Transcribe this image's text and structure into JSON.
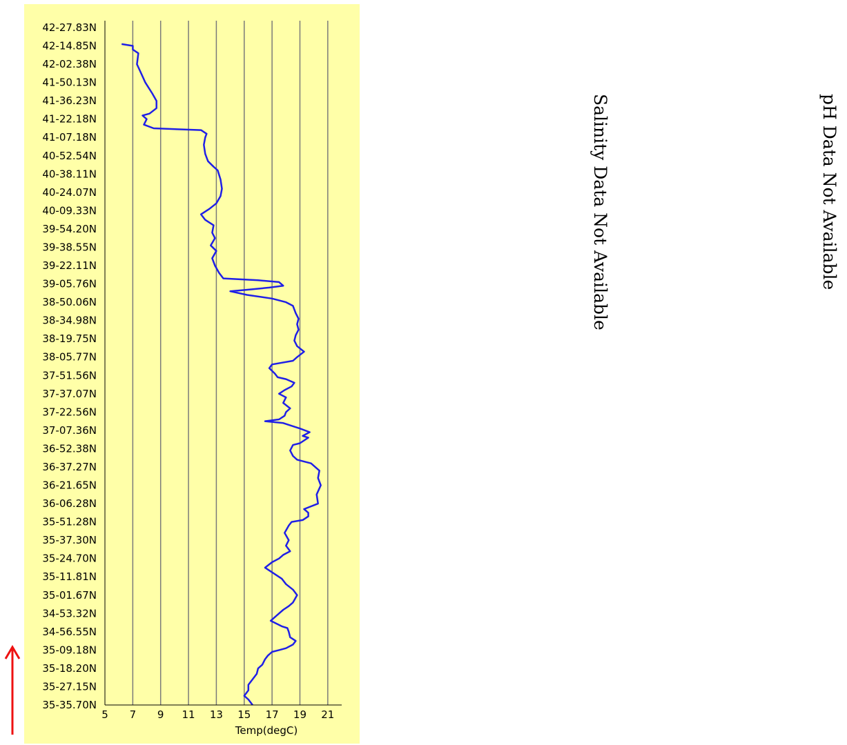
{
  "chart_data": {
    "type": "line",
    "orientation": "vertical",
    "xlabel": "Temp(degC)",
    "xlim": [
      5,
      22
    ],
    "xticks": [
      5,
      7,
      9,
      11,
      13,
      15,
      17,
      19,
      21
    ],
    "grid_x": true,
    "y_tick_labels": [
      "42-27.83N",
      "42-14.85N",
      "42-02.38N",
      "41-50.13N",
      "41-36.23N",
      "41-22.18N",
      "41-07.18N",
      "40-52.54N",
      "40-38.11N",
      "40-24.07N",
      "40-09.33N",
      "39-54.20N",
      "39-38.55N",
      "39-22.11N",
      "39-05.76N",
      "38-50.06N",
      "38-34.98N",
      "38-19.75N",
      "38-05.77N",
      "37-51.56N",
      "37-37.07N",
      "37-22.56N",
      "37-07.36N",
      "36-52.38N",
      "36-37.27N",
      "36-21.65N",
      "36-06.28N",
      "35-51.28N",
      "35-37.30N",
      "35-24.70N",
      "35-11.81N",
      "35-01.67N",
      "34-53.32N",
      "34-56.55N",
      "35-09.18N",
      "35-18.20N",
      "35-27.15N",
      "35-35.70N"
    ],
    "series": [
      {
        "color": "#1f1fe6",
        "points": [
          [
            15.6,
            0.0
          ],
          [
            15.3,
            0.3
          ],
          [
            15.0,
            0.5
          ],
          [
            15.3,
            0.8
          ],
          [
            15.3,
            1.1
          ],
          [
            15.6,
            1.4
          ],
          [
            15.9,
            1.7
          ],
          [
            16.0,
            2.0
          ],
          [
            16.3,
            2.2
          ],
          [
            16.5,
            2.5
          ],
          [
            16.7,
            2.7
          ],
          [
            17.0,
            2.9
          ],
          [
            17.5,
            3.0
          ],
          [
            18.0,
            3.1
          ],
          [
            18.5,
            3.3
          ],
          [
            18.7,
            3.5
          ],
          [
            18.3,
            3.7
          ],
          [
            18.2,
            4.0
          ],
          [
            18.1,
            4.2
          ],
          [
            17.7,
            4.3
          ],
          [
            16.9,
            4.6
          ],
          [
            17.2,
            4.8
          ],
          [
            17.5,
            5.0
          ],
          [
            17.8,
            5.2
          ],
          [
            18.2,
            5.4
          ],
          [
            18.5,
            5.6
          ],
          [
            18.8,
            6.0
          ],
          [
            18.5,
            6.3
          ],
          [
            18.0,
            6.6
          ],
          [
            17.7,
            6.9
          ],
          [
            16.5,
            7.5
          ],
          [
            17.0,
            7.8
          ],
          [
            17.5,
            8.0
          ],
          [
            17.8,
            8.2
          ],
          [
            18.3,
            8.4
          ],
          [
            18.0,
            8.7
          ],
          [
            18.2,
            9.0
          ],
          [
            17.9,
            9.4
          ],
          [
            18.2,
            9.8
          ],
          [
            18.4,
            10.0
          ],
          [
            19.2,
            10.1
          ],
          [
            19.6,
            10.3
          ],
          [
            19.6,
            10.5
          ],
          [
            19.3,
            10.7
          ],
          [
            20.3,
            11.0
          ],
          [
            20.2,
            11.5
          ],
          [
            20.5,
            12.0
          ],
          [
            20.3,
            12.4
          ],
          [
            20.4,
            12.8
          ],
          [
            19.8,
            13.2
          ],
          [
            18.8,
            13.4
          ],
          [
            18.5,
            13.6
          ],
          [
            18.3,
            13.9
          ],
          [
            18.5,
            14.2
          ],
          [
            19.0,
            14.3
          ],
          [
            19.6,
            14.6
          ],
          [
            19.2,
            14.7
          ],
          [
            19.7,
            14.9
          ],
          [
            19.0,
            15.1
          ],
          [
            18.2,
            15.3
          ],
          [
            17.8,
            15.4
          ],
          [
            16.5,
            15.5
          ],
          [
            17.5,
            15.6
          ],
          [
            17.9,
            15.8
          ],
          [
            18.0,
            16.0
          ],
          [
            18.3,
            16.2
          ],
          [
            17.8,
            16.5
          ],
          [
            18.0,
            16.8
          ],
          [
            17.5,
            17.0
          ],
          [
            17.9,
            17.2
          ],
          [
            18.4,
            17.4
          ],
          [
            18.6,
            17.6
          ],
          [
            18.0,
            17.8
          ],
          [
            17.4,
            17.9
          ],
          [
            17.2,
            18.1
          ],
          [
            16.8,
            18.4
          ],
          [
            17.0,
            18.6
          ],
          [
            18.5,
            18.8
          ],
          [
            18.8,
            19.0
          ],
          [
            19.3,
            19.3
          ],
          [
            18.8,
            19.6
          ],
          [
            18.6,
            19.9
          ],
          [
            18.7,
            20.2
          ],
          [
            18.9,
            20.5
          ],
          [
            18.8,
            20.8
          ],
          [
            18.9,
            21.1
          ],
          [
            18.7,
            21.4
          ],
          [
            18.5,
            21.8
          ],
          [
            18.0,
            22.0
          ],
          [
            17.0,
            22.2
          ],
          [
            15.2,
            22.4
          ],
          [
            14.0,
            22.6
          ],
          [
            15.5,
            22.7
          ],
          [
            16.8,
            22.8
          ],
          [
            17.8,
            22.9
          ],
          [
            17.5,
            23.1
          ],
          [
            16.0,
            23.2
          ],
          [
            13.5,
            23.3
          ],
          [
            13.2,
            23.6
          ],
          [
            12.9,
            24.0
          ],
          [
            12.7,
            24.4
          ],
          [
            13.0,
            24.8
          ],
          [
            12.6,
            25.1
          ],
          [
            12.9,
            25.5
          ],
          [
            12.7,
            25.8
          ],
          [
            12.8,
            26.2
          ],
          [
            12.2,
            26.5
          ],
          [
            11.9,
            26.8
          ],
          [
            12.5,
            27.1
          ],
          [
            13.0,
            27.4
          ],
          [
            13.3,
            27.8
          ],
          [
            13.4,
            28.2
          ],
          [
            13.3,
            28.7
          ],
          [
            13.1,
            29.2
          ],
          [
            12.8,
            29.4
          ],
          [
            12.4,
            29.7
          ],
          [
            12.2,
            30.1
          ],
          [
            12.1,
            30.6
          ],
          [
            12.2,
            31.0
          ],
          [
            12.3,
            31.2
          ],
          [
            11.9,
            31.4
          ],
          [
            8.5,
            31.5
          ],
          [
            7.8,
            31.7
          ],
          [
            8.0,
            32.0
          ],
          [
            7.7,
            32.2
          ],
          [
            8.2,
            32.3
          ],
          [
            8.7,
            32.6
          ],
          [
            8.7,
            33.0
          ],
          [
            8.4,
            33.4
          ],
          [
            7.9,
            34.0
          ],
          [
            7.6,
            34.5
          ],
          [
            7.3,
            35.0
          ],
          [
            7.4,
            35.6
          ],
          [
            7.0,
            35.8
          ],
          [
            7.0,
            36.0
          ],
          [
            6.2,
            36.1
          ]
        ]
      }
    ]
  },
  "salinity_message": "Salinity Data Not Available",
  "ph_message": "pH Data Not Available"
}
